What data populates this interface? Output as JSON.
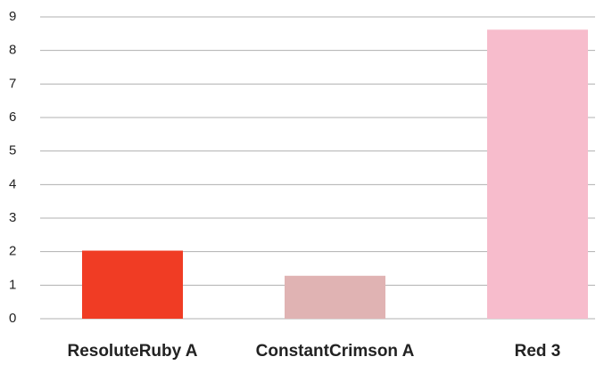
{
  "chart_data": {
    "type": "bar",
    "categories": [
      "ResoluteRuby A",
      "ConstantCrimson A",
      "Red 3"
    ],
    "values": [
      2.03,
      1.28,
      8.62
    ],
    "colors": [
      "#f03c24",
      "#e0b3b3",
      "#f7bccc"
    ],
    "ylim": [
      0,
      9
    ],
    "yticks": [
      0,
      1,
      2,
      3,
      4,
      5,
      6,
      7,
      8,
      9
    ],
    "grid": true
  }
}
